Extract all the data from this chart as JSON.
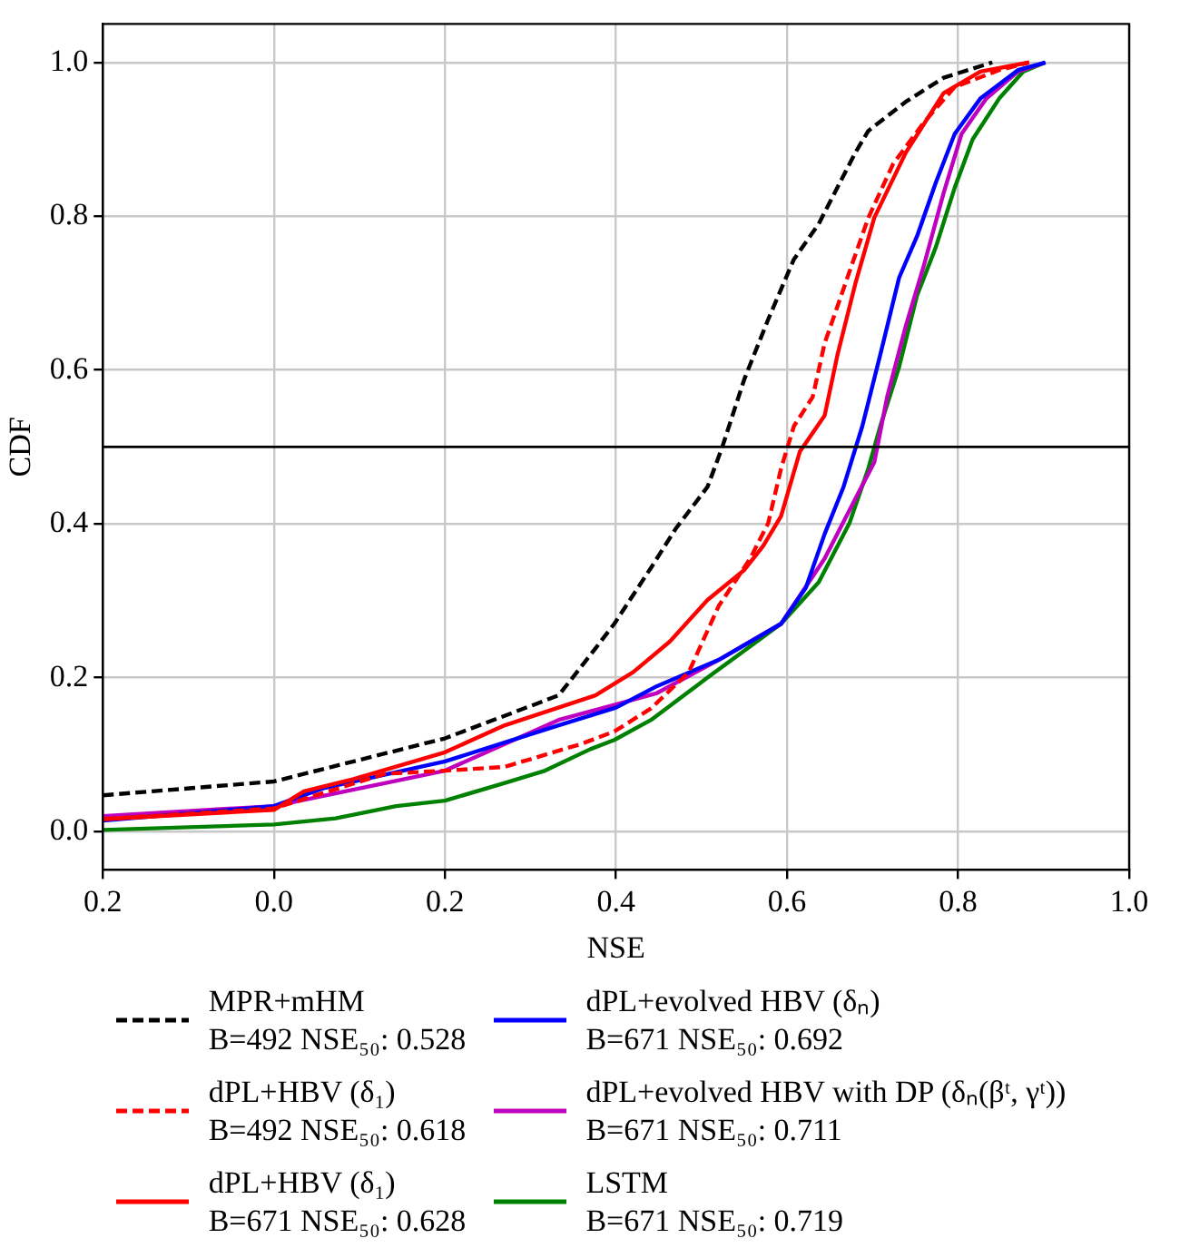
{
  "chart_data": {
    "type": "line",
    "xlabel": "NSE",
    "ylabel": "CDF",
    "xlim": [
      -0.2,
      1.0
    ],
    "ylim": [
      -0.05,
      1.05
    ],
    "xticks": [
      {
        "value": -0.2,
        "label": "0.2"
      },
      {
        "value": 0,
        "label": "0.0"
      },
      {
        "value": 0.2,
        "label": "0.2"
      },
      {
        "value": 0.4,
        "label": "0.4"
      },
      {
        "value": 0.6,
        "label": "0.6"
      },
      {
        "value": 0.8,
        "label": "0.8"
      },
      {
        "value": 1.0,
        "label": "1.0"
      }
    ],
    "yticks": [
      {
        "value": 0,
        "label": "0.0"
      },
      {
        "value": 0.2,
        "label": "0.2"
      },
      {
        "value": 0.4,
        "label": "0.4"
      },
      {
        "value": 0.6,
        "label": "0.6"
      },
      {
        "value": 0.8,
        "label": "0.8"
      },
      {
        "value": 1.0,
        "label": "1.0"
      }
    ],
    "grid": true,
    "legend": "bottom",
    "marker": "none",
    "ref_lines": [
      {
        "axis": "y",
        "value": 0.5,
        "color": "#000000"
      }
    ],
    "series": [
      {
        "name": "MPR+mHM\nB=492 NSE₅₀: 0.528",
        "color": "#000000",
        "line_style": "dashed",
        "x": [
          -0.2,
          0,
          0.2,
          0.333,
          0.376,
          0.398,
          0.441,
          0.47,
          0.507,
          0.524,
          0.55,
          0.578,
          0.608,
          0.637,
          0.68,
          0.695,
          0.739,
          0.783,
          0.84
        ],
        "values": [
          0.047,
          0.065,
          0.121,
          0.177,
          0.238,
          0.27,
          0.343,
          0.394,
          0.448,
          0.499,
          0.588,
          0.666,
          0.744,
          0.79,
          0.883,
          0.911,
          0.949,
          0.98,
          1.0
        ]
      },
      {
        "name": "dPL+HBV (δ₁)\nB=492 NSE₅₀: 0.618",
        "color": "#ff0000",
        "line_style": "dashed",
        "x": [
          -0.2,
          0,
          0.13,
          0.2,
          0.27,
          0.36,
          0.398,
          0.441,
          0.485,
          0.52,
          0.557,
          0.578,
          0.593,
          0.608,
          0.63,
          0.644,
          0.673,
          0.695,
          0.724,
          0.76,
          0.796,
          0.848,
          0.883
        ],
        "values": [
          0.016,
          0.03,
          0.075,
          0.079,
          0.084,
          0.114,
          0.13,
          0.16,
          0.207,
          0.293,
          0.355,
          0.401,
          0.472,
          0.527,
          0.565,
          0.635,
          0.728,
          0.798,
          0.868,
          0.922,
          0.968,
          0.99,
          1.0
        ]
      },
      {
        "name": "dPL+HBV (δ₁)\nB=671 NSE₅₀: 0.628",
        "color": "#ff0000",
        "line_style": "solid",
        "x": [
          -0.2,
          0,
          0.035,
          0.093,
          0.2,
          0.27,
          0.376,
          0.42,
          0.463,
          0.507,
          0.55,
          0.572,
          0.593,
          0.615,
          0.644,
          0.659,
          0.68,
          0.702,
          0.739,
          0.783,
          0.826,
          0.883
        ],
        "values": [
          0.016,
          0.028,
          0.052,
          0.068,
          0.103,
          0.138,
          0.177,
          0.207,
          0.247,
          0.301,
          0.34,
          0.371,
          0.41,
          0.494,
          0.541,
          0.62,
          0.713,
          0.798,
          0.883,
          0.96,
          0.988,
          1.0
        ]
      },
      {
        "name": "dPL+evolved HBV (δₙ)\nB=671 NSE₅₀: 0.692",
        "color": "#0000ff",
        "line_style": "solid",
        "x": [
          -0.2,
          0,
          0.057,
          0.2,
          0.333,
          0.4,
          0.448,
          0.52,
          0.593,
          0.622,
          0.644,
          0.666,
          0.688,
          0.709,
          0.731,
          0.752,
          0.774,
          0.796,
          0.826,
          0.87,
          0.902
        ],
        "values": [
          0.014,
          0.033,
          0.056,
          0.091,
          0.138,
          0.161,
          0.189,
          0.223,
          0.27,
          0.317,
          0.387,
          0.448,
          0.527,
          0.62,
          0.72,
          0.774,
          0.844,
          0.907,
          0.953,
          0.99,
          1.0
        ]
      },
      {
        "name": "dPL+evolved HBV with DP (δₙ(βᵗ, γᵗ))\nB=671 NSE₅₀: 0.711",
        "color": "#bf00bf",
        "line_style": "solid",
        "x": [
          -0.2,
          0,
          0.2,
          0.333,
          0.4,
          0.448,
          0.52,
          0.593,
          0.644,
          0.68,
          0.702,
          0.717,
          0.739,
          0.76,
          0.783,
          0.804,
          0.833,
          0.87,
          0.902
        ],
        "values": [
          0.02,
          0.033,
          0.079,
          0.145,
          0.165,
          0.18,
          0.223,
          0.27,
          0.355,
          0.433,
          0.48,
          0.565,
          0.658,
          0.736,
          0.83,
          0.907,
          0.953,
          0.988,
          1.0
        ]
      },
      {
        "name": "LSTM\nB=671 NSE₅₀: 0.719",
        "color": "#008000",
        "line_style": "solid",
        "x": [
          -0.2,
          0,
          0.072,
          0.143,
          0.2,
          0.27,
          0.317,
          0.37,
          0.398,
          0.441,
          0.507,
          0.593,
          0.637,
          0.673,
          0.695,
          0.709,
          0.731,
          0.752,
          0.774,
          0.796,
          0.817,
          0.848,
          0.876,
          0.902
        ],
        "values": [
          0.002,
          0.009,
          0.017,
          0.033,
          0.04,
          0.063,
          0.079,
          0.107,
          0.119,
          0.145,
          0.2,
          0.27,
          0.324,
          0.401,
          0.472,
          0.527,
          0.604,
          0.697,
          0.76,
          0.837,
          0.9,
          0.953,
          0.988,
          1.0
        ]
      }
    ]
  }
}
